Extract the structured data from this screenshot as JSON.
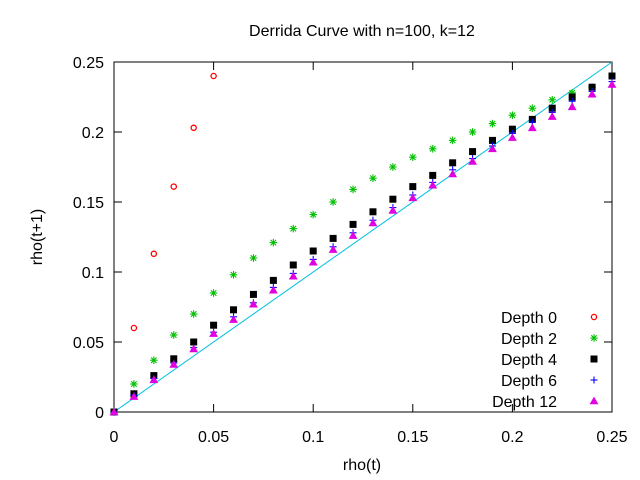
{
  "chart_data": {
    "type": "scatter",
    "title": "Derrida Curve with n=100, k=12",
    "xlabel": "rho(t)",
    "ylabel": "rho(t+1)",
    "xlim": [
      0,
      0.25
    ],
    "ylim": [
      0,
      0.25
    ],
    "x_ticks": [
      {
        "value": 0,
        "label": "0"
      },
      {
        "value": 0.05,
        "label": "0.05"
      },
      {
        "value": 0.1,
        "label": "0.1"
      },
      {
        "value": 0.15,
        "label": "0.15"
      },
      {
        "value": 0.2,
        "label": "0.2"
      },
      {
        "value": 0.25,
        "label": "0.25"
      }
    ],
    "y_ticks": [
      {
        "value": 0,
        "label": "0"
      },
      {
        "value": 0.05,
        "label": "0.05"
      },
      {
        "value": 0.1,
        "label": "0.1"
      },
      {
        "value": 0.15,
        "label": "0.15"
      },
      {
        "value": 0.2,
        "label": "0.2"
      },
      {
        "value": 0.25,
        "label": "0.25"
      }
    ],
    "grid": false,
    "legend_position": "bottom-right",
    "reference_line": {
      "name": "y = x",
      "color": "#00c0e0",
      "from": [
        0,
        0
      ],
      "to": [
        0.25,
        0.25
      ]
    },
    "series": [
      {
        "name": "Depth 0",
        "marker": "open-circle",
        "color": "#ff0000",
        "x": [
          0,
          0.01,
          0.02,
          0.03,
          0.04,
          0.05
        ],
        "y": [
          0,
          0.06,
          0.113,
          0.161,
          0.203,
          0.24
        ]
      },
      {
        "name": "Depth 2",
        "marker": "asterisk",
        "color": "#00c000",
        "x": [
          0,
          0.01,
          0.02,
          0.03,
          0.04,
          0.05,
          0.06,
          0.07,
          0.08,
          0.09,
          0.1,
          0.11,
          0.12,
          0.13,
          0.14,
          0.15,
          0.16,
          0.17,
          0.18,
          0.19,
          0.2,
          0.21,
          0.22,
          0.23,
          0.24
        ],
        "y": [
          0,
          0.02,
          0.037,
          0.055,
          0.07,
          0.085,
          0.098,
          0.11,
          0.121,
          0.131,
          0.141,
          0.15,
          0.159,
          0.167,
          0.175,
          0.182,
          0.188,
          0.194,
          0.2,
          0.206,
          0.212,
          0.217,
          0.223,
          0.228,
          0.232
        ]
      },
      {
        "name": "Depth 4",
        "marker": "filled-square",
        "color": "#000000",
        "x": [
          0,
          0.01,
          0.02,
          0.03,
          0.04,
          0.05,
          0.06,
          0.07,
          0.08,
          0.09,
          0.1,
          0.11,
          0.12,
          0.13,
          0.14,
          0.15,
          0.16,
          0.17,
          0.18,
          0.19,
          0.2,
          0.21,
          0.22,
          0.23,
          0.24,
          0.25
        ],
        "y": [
          0,
          0.013,
          0.026,
          0.038,
          0.05,
          0.062,
          0.073,
          0.084,
          0.094,
          0.105,
          0.115,
          0.124,
          0.134,
          0.143,
          0.152,
          0.161,
          0.169,
          0.178,
          0.186,
          0.194,
          0.202,
          0.209,
          0.217,
          0.225,
          0.232,
          0.24
        ]
      },
      {
        "name": "Depth 6",
        "marker": "plus",
        "color": "#0000ff",
        "x": [
          0,
          0.01,
          0.02,
          0.03,
          0.04,
          0.05,
          0.06,
          0.07,
          0.08,
          0.09,
          0.1,
          0.11,
          0.12,
          0.13,
          0.14,
          0.15,
          0.16,
          0.17,
          0.18,
          0.19,
          0.2,
          0.21,
          0.22,
          0.23,
          0.24,
          0.25
        ],
        "y": [
          0,
          0.012,
          0.024,
          0.035,
          0.046,
          0.057,
          0.068,
          0.078,
          0.089,
          0.099,
          0.109,
          0.118,
          0.128,
          0.137,
          0.146,
          0.155,
          0.164,
          0.173,
          0.181,
          0.19,
          0.199,
          0.207,
          0.214,
          0.222,
          0.229,
          0.236
        ]
      },
      {
        "name": "Depth 12",
        "marker": "filled-triangle",
        "color": "#e000e0",
        "x": [
          0,
          0.01,
          0.02,
          0.03,
          0.04,
          0.05,
          0.06,
          0.07,
          0.08,
          0.09,
          0.1,
          0.11,
          0.12,
          0.13,
          0.14,
          0.15,
          0.16,
          0.17,
          0.18,
          0.19,
          0.2,
          0.21,
          0.22,
          0.23,
          0.24,
          0.25
        ],
        "y": [
          0,
          0.011,
          0.023,
          0.034,
          0.045,
          0.056,
          0.066,
          0.077,
          0.087,
          0.097,
          0.107,
          0.116,
          0.126,
          0.135,
          0.144,
          0.153,
          0.162,
          0.17,
          0.179,
          0.188,
          0.196,
          0.203,
          0.211,
          0.218,
          0.227,
          0.234
        ]
      }
    ]
  }
}
